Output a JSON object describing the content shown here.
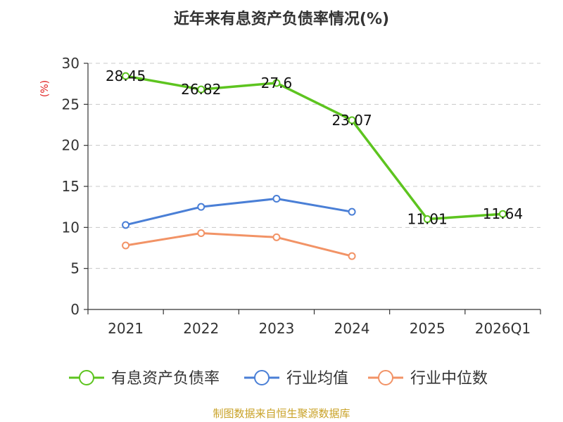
{
  "chart_data": {
    "type": "line",
    "title": "近年来有息资产负债率情况(%)",
    "ylabel": "(%)",
    "xlabel": "",
    "categories": [
      "2021",
      "2022",
      "2023",
      "2024",
      "2025",
      "2026Q1"
    ],
    "ylim": [
      0,
      30
    ],
    "yticks": [
      0,
      5,
      10,
      15,
      20,
      25,
      30
    ],
    "grid": true,
    "legend_position": "bottom",
    "series": [
      {
        "name": "有息资产负债率",
        "color": "#5dc41f",
        "values": [
          28.45,
          26.82,
          27.6,
          23.07,
          11.01,
          11.64
        ],
        "labels": [
          "28.45",
          "26.82",
          "27.6",
          "23.07",
          "11.01",
          "11.64"
        ]
      },
      {
        "name": "行业均值",
        "color": "#4a7fd6",
        "values": [
          10.3,
          12.5,
          13.5,
          11.9,
          null,
          null
        ]
      },
      {
        "name": "行业中位数",
        "color": "#f29366",
        "values": [
          7.8,
          9.3,
          8.8,
          6.5,
          null,
          null
        ]
      }
    ]
  },
  "source_note": "制图数据来自恒生聚源数据库"
}
